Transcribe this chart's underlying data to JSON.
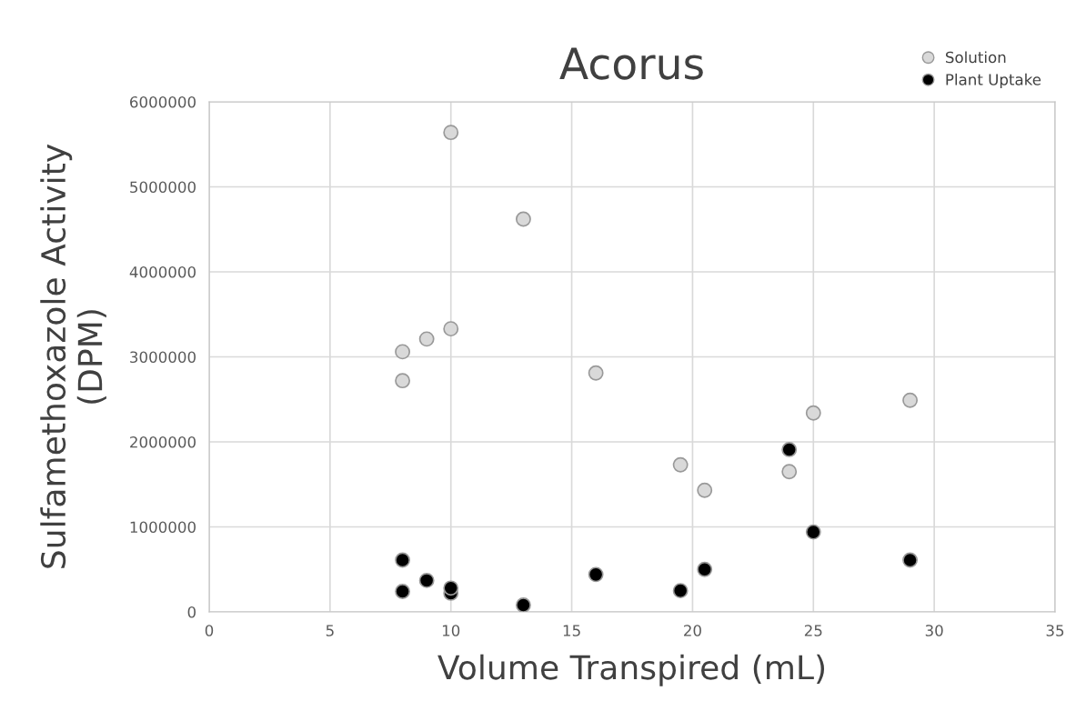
{
  "chart_data": {
    "type": "scatter",
    "title": "Acorus",
    "xlabel": "Volume Transpired (mL)",
    "ylabel": "Sulfamethoxazole Activity\n(DPM)",
    "xlim": [
      0,
      35
    ],
    "xticks": [
      0,
      5,
      10,
      15,
      20,
      25,
      30,
      35
    ],
    "ylim": [
      0,
      6000000
    ],
    "yticks": [
      0,
      1000000,
      2000000,
      3000000,
      4000000,
      5000000,
      6000000
    ],
    "grid": true,
    "legend": "top right",
    "marker": "circle",
    "series": [
      {
        "name": "Solution",
        "color": "#d9d9d9",
        "x": [
          8,
          8,
          9,
          10,
          10,
          13,
          16,
          19.5,
          20.5,
          24,
          25,
          29
        ],
        "values": [
          3060000,
          2720000,
          3210000,
          3330000,
          5640000,
          4620000,
          2810000,
          1730000,
          1430000,
          1650000,
          2340000,
          2490000
        ]
      },
      {
        "name": "Plant Uptake",
        "color": "#000000",
        "x": [
          8,
          8,
          9,
          10,
          10,
          13,
          16,
          19.5,
          20.5,
          24,
          25,
          29
        ],
        "values": [
          610000,
          240000,
          370000,
          280000,
          220000,
          80000,
          440000,
          250000,
          500000,
          1910000,
          940000,
          610000
        ]
      }
    ]
  }
}
